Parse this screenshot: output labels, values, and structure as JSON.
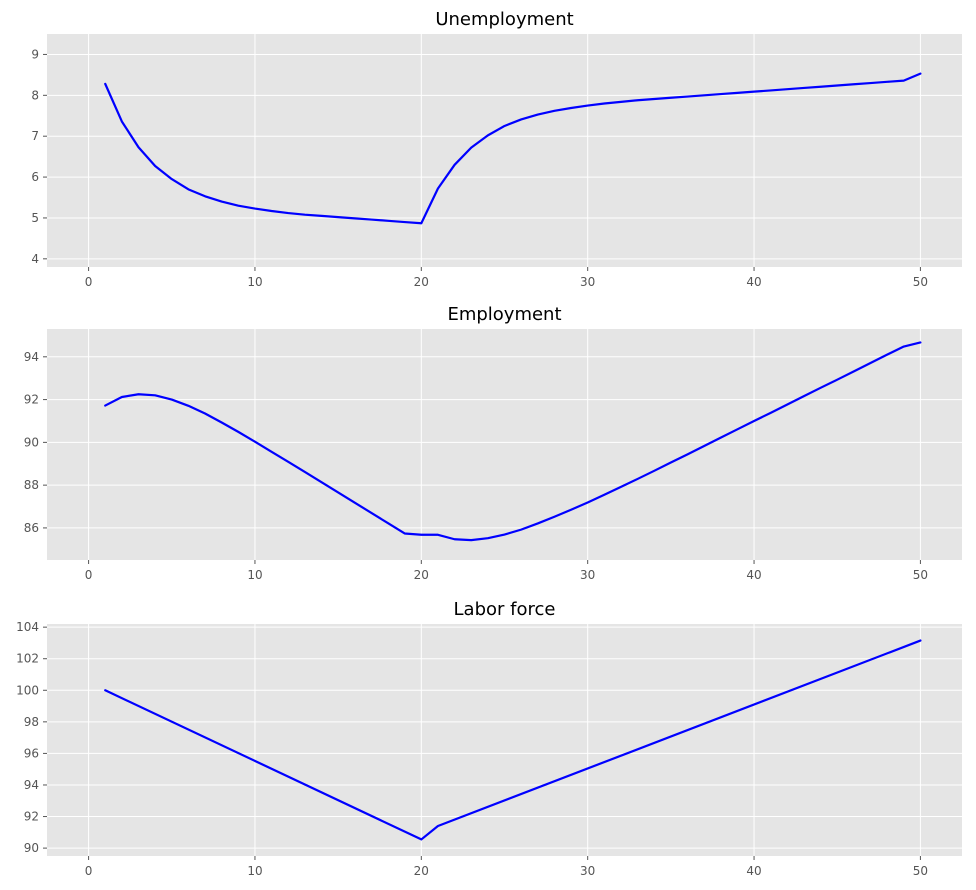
{
  "chart_data": [
    {
      "type": "line",
      "title": "Unemployment",
      "xlabel": "",
      "ylabel": "",
      "xlim": [
        -2.5,
        52.5
      ],
      "ylim": [
        3.8,
        9.5
      ],
      "xticks": [
        0,
        10,
        20,
        30,
        40,
        50
      ],
      "yticks": [
        4,
        5,
        6,
        7,
        8,
        9
      ],
      "grid": true,
      "color": "#0000ff",
      "series": [
        {
          "x": [
            1,
            2,
            3,
            4,
            5,
            6,
            7,
            8,
            9,
            10,
            11,
            12,
            13,
            14,
            15,
            16,
            17,
            18,
            19,
            20,
            21,
            22,
            23,
            24,
            25,
            26,
            27,
            28,
            29,
            30,
            31,
            32,
            33,
            34,
            35,
            36,
            37,
            38,
            39,
            40,
            41,
            42,
            43,
            44,
            45,
            46,
            47,
            48,
            49,
            50
          ],
          "values": [
            8.28,
            7.36,
            6.73,
            6.27,
            5.95,
            5.7,
            5.53,
            5.4,
            5.3,
            5.23,
            5.17,
            5.12,
            5.08,
            5.05,
            5.02,
            4.99,
            4.96,
            4.93,
            4.9,
            4.87,
            5.72,
            6.3,
            6.72,
            7.02,
            7.25,
            7.41,
            7.53,
            7.62,
            7.69,
            7.75,
            7.8,
            7.84,
            7.88,
            7.91,
            7.94,
            7.97,
            8.0,
            8.03,
            8.06,
            8.09,
            8.12,
            8.15,
            8.18,
            8.21,
            8.24,
            8.27,
            8.3,
            8.33,
            8.36,
            8.53
          ]
        }
      ]
    },
    {
      "type": "line",
      "title": "Employment",
      "xlabel": "",
      "ylabel": "",
      "xlim": [
        -2.5,
        52.5
      ],
      "ylim": [
        84.5,
        95.3
      ],
      "xticks": [
        0,
        10,
        20,
        30,
        40,
        50
      ],
      "yticks": [
        86,
        88,
        90,
        92,
        94
      ],
      "grid": true,
      "color": "#0000ff",
      "series": [
        {
          "x": [
            1,
            2,
            3,
            4,
            5,
            6,
            7,
            8,
            9,
            10,
            11,
            12,
            13,
            14,
            15,
            16,
            17,
            18,
            19,
            20,
            21,
            22,
            23,
            24,
            25,
            26,
            27,
            28,
            29,
            30,
            31,
            32,
            33,
            34,
            35,
            36,
            37,
            38,
            39,
            40,
            41,
            42,
            43,
            44,
            45,
            46,
            47,
            48,
            49,
            50
          ],
          "values": [
            91.72,
            92.12,
            92.25,
            92.2,
            92.0,
            91.71,
            91.35,
            90.93,
            90.49,
            90.03,
            89.56,
            89.09,
            88.62,
            88.14,
            87.66,
            87.18,
            86.7,
            86.22,
            85.74,
            85.68,
            85.68,
            85.47,
            85.43,
            85.52,
            85.69,
            85.92,
            86.21,
            86.52,
            86.85,
            87.19,
            87.55,
            87.92,
            88.29,
            88.67,
            89.06,
            89.44,
            89.83,
            90.22,
            90.61,
            91.0,
            91.38,
            91.77,
            92.16,
            92.55,
            92.93,
            93.32,
            93.71,
            94.1,
            94.48,
            94.67
          ]
        }
      ]
    },
    {
      "type": "line",
      "title": "Labor force",
      "xlabel": "",
      "ylabel": "",
      "xlim": [
        -2.5,
        52.5
      ],
      "ylim": [
        89.5,
        104.2
      ],
      "xticks": [
        0,
        10,
        20,
        30,
        40,
        50
      ],
      "yticks": [
        90,
        92,
        94,
        96,
        98,
        100,
        102,
        104
      ],
      "grid": true,
      "color": "#0000ff",
      "series": [
        {
          "x": [
            1,
            20,
            21,
            50
          ],
          "values": [
            100.0,
            90.55,
            91.4,
            103.15
          ]
        }
      ]
    }
  ]
}
